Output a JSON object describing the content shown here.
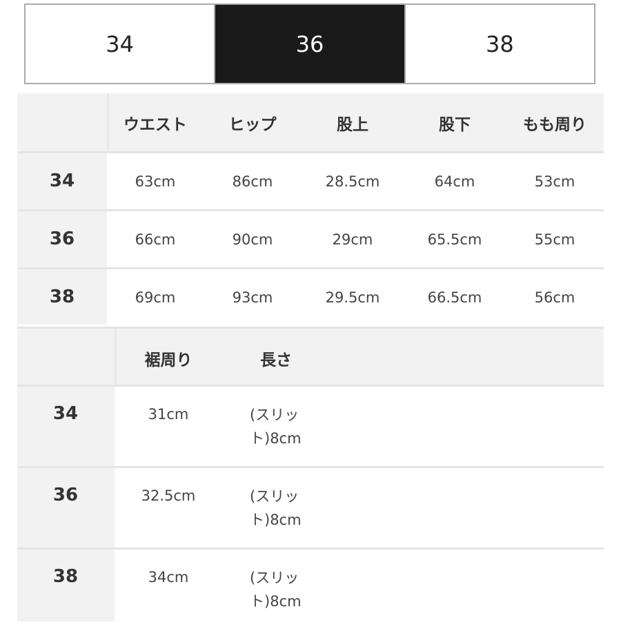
{
  "size_tabs": {
    "items": [
      "34",
      "36",
      "38"
    ],
    "active": "36"
  },
  "table1": {
    "headers": [
      "ウエスト",
      "ヒップ",
      "股上",
      "股下",
      "もも周り"
    ],
    "rows": [
      {
        "size": "34",
        "values": [
          "63cm",
          "86cm",
          "28.5cm",
          "64cm",
          "53cm"
        ]
      },
      {
        "size": "36",
        "values": [
          "66cm",
          "90cm",
          "29cm",
          "65.5cm",
          "55cm"
        ]
      },
      {
        "size": "38",
        "values": [
          "69cm",
          "93cm",
          "29.5cm",
          "66.5cm",
          "56cm"
        ]
      }
    ]
  },
  "table2": {
    "headers": [
      "裾周り",
      "長さ"
    ],
    "rows": [
      {
        "size": "34",
        "values": [
          "31cm",
          "(スリット)8cm"
        ]
      },
      {
        "size": "36",
        "values": [
          "32.5cm",
          "(スリット)8cm"
        ]
      },
      {
        "size": "38",
        "values": [
          "34cm",
          "(スリット)8cm"
        ]
      }
    ]
  },
  "colors": {
    "active_tab_bg": "#1a1a1a",
    "header_bg": "#f2f2f2",
    "border": "#aaaaaa"
  }
}
